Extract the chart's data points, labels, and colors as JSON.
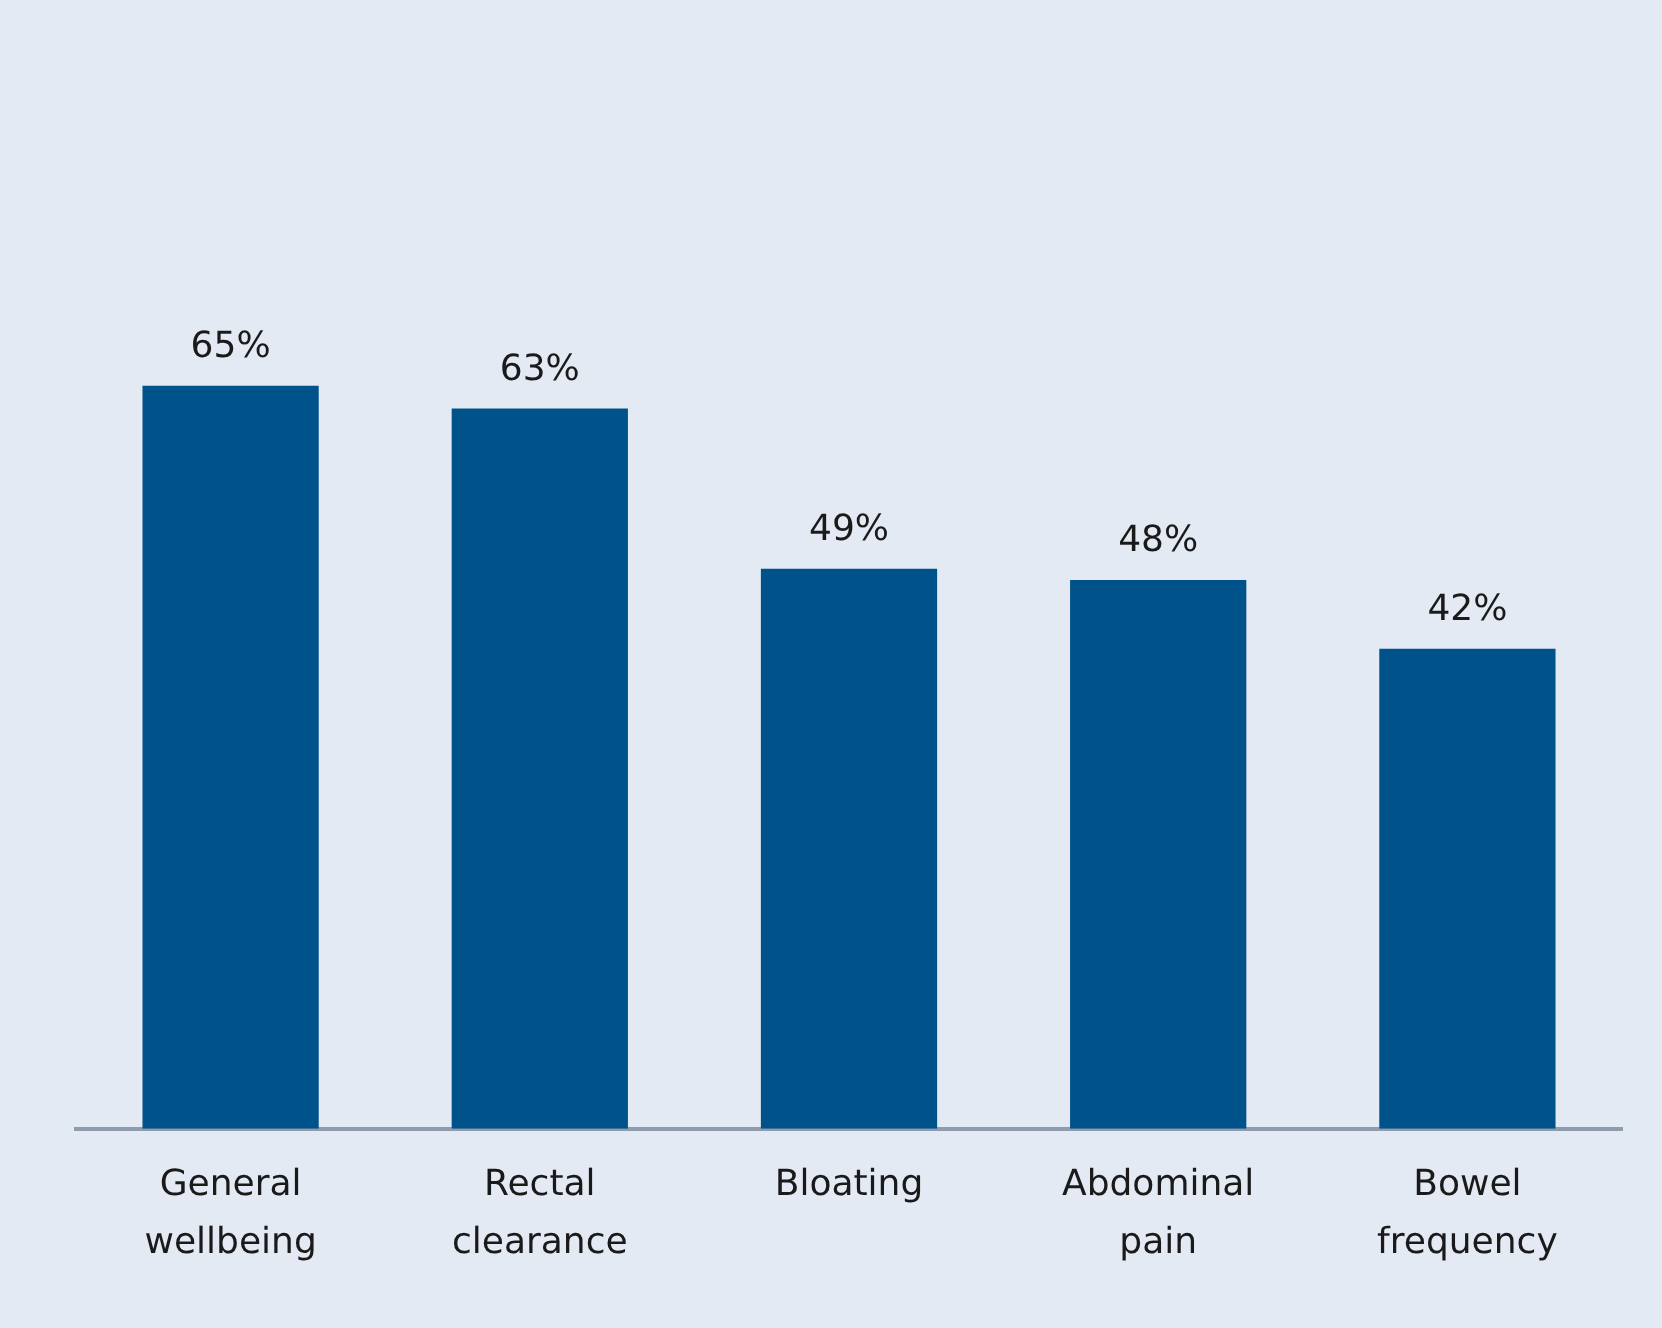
{
  "chart_data": {
    "type": "bar",
    "categories": [
      "General wellbeing",
      "Rectal clearance",
      "Bloating",
      "Abdominal pain",
      "Bowel frequency"
    ],
    "values": [
      65,
      63,
      49,
      48,
      42
    ],
    "color": "#00528a",
    "tick_labels": "x",
    "data_labels": true,
    "value_labels": [
      "65%",
      "63%",
      "49%",
      "48%",
      "42%"
    ],
    "grid": false,
    "legend": false
  }
}
